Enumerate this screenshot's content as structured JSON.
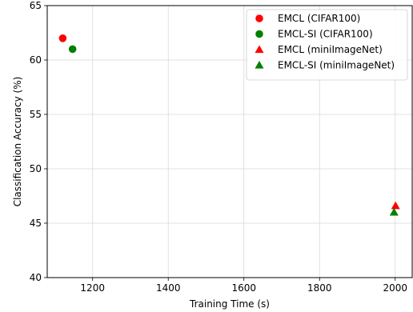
{
  "chart_data": {
    "type": "scatter",
    "title": "",
    "xlabel": "Training Time (s)",
    "ylabel": "Classification Accuracy (%)",
    "xlim": [
      1080,
      2045
    ],
    "ylim": [
      40,
      65
    ],
    "xticks": [
      1200,
      1400,
      1600,
      1800,
      2000
    ],
    "yticks": [
      40,
      45,
      50,
      55,
      60,
      65
    ],
    "grid": true,
    "legend_position": "top-right",
    "series": [
      {
        "name": "EMCL (CIFAR100)",
        "marker": "circle",
        "color": "#ff0000",
        "points": [
          {
            "x": 1121,
            "y": 62.0
          }
        ]
      },
      {
        "name": "EMCL-SI (CIFAR100)",
        "marker": "circle",
        "color": "#008000",
        "points": [
          {
            "x": 1147,
            "y": 61.0
          }
        ]
      },
      {
        "name": "EMCL (miniImageNet)",
        "marker": "triangle",
        "color": "#ff0000",
        "points": [
          {
            "x": 2001,
            "y": 46.6
          }
        ]
      },
      {
        "name": "EMCL-SI (miniImageNet)",
        "marker": "triangle",
        "color": "#008000",
        "points": [
          {
            "x": 1997,
            "y": 46.0
          }
        ]
      }
    ]
  }
}
